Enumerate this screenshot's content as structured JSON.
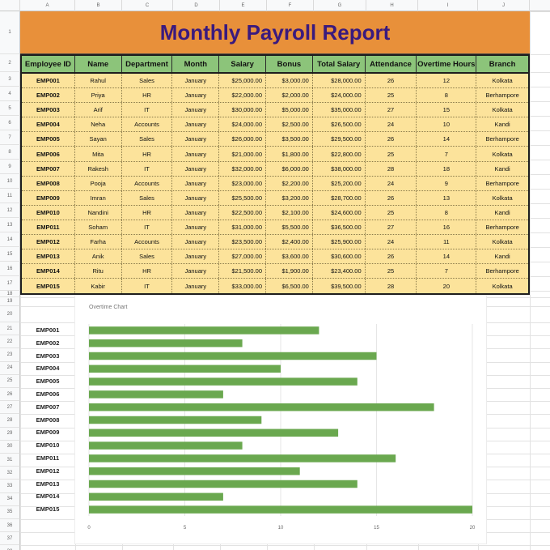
{
  "columns": [
    "A",
    "B",
    "C",
    "D",
    "E",
    "F",
    "G",
    "H",
    "I",
    "J"
  ],
  "rows": [
    "1",
    "2",
    "3",
    "4",
    "5",
    "6",
    "7",
    "8",
    "9",
    "10",
    "11",
    "12",
    "13",
    "14",
    "15",
    "16",
    "17",
    "18",
    "19",
    "20",
    "21",
    "22",
    "23",
    "24",
    "25",
    "26",
    "27",
    "28",
    "29",
    "30",
    "31",
    "32",
    "33",
    "34",
    "35",
    "36",
    "37",
    "38"
  ],
  "report": {
    "title": "Monthly Payroll Report",
    "headers": [
      "Employee ID",
      "Name",
      "Department",
      "Month",
      "Salary",
      "Bonus",
      "Total Salary",
      "Attendance",
      "Overtime Hours",
      "Branch"
    ],
    "records": [
      [
        "EMP001",
        "Rahul",
        "Sales",
        "January",
        "$25,000.00",
        "$3,000.00",
        "$28,000.00",
        "26",
        "12",
        "Kolkata"
      ],
      [
        "EMP002",
        "Priya",
        "HR",
        "January",
        "$22,000.00",
        "$2,000.00",
        "$24,000.00",
        "25",
        "8",
        "Berhampore"
      ],
      [
        "EMP003",
        "Arif",
        "IT",
        "January",
        "$30,000.00",
        "$5,000.00",
        "$35,000.00",
        "27",
        "15",
        "Kolkata"
      ],
      [
        "EMP004",
        "Neha",
        "Accounts",
        "January",
        "$24,000.00",
        "$2,500.00",
        "$26,500.00",
        "24",
        "10",
        "Kandi"
      ],
      [
        "EMP005",
        "Sayan",
        "Sales",
        "January",
        "$26,000.00",
        "$3,500.00",
        "$29,500.00",
        "26",
        "14",
        "Berhampore"
      ],
      [
        "EMP006",
        "Mita",
        "HR",
        "January",
        "$21,000.00",
        "$1,800.00",
        "$22,800.00",
        "25",
        "7",
        "Kolkata"
      ],
      [
        "EMP007",
        "Rakesh",
        "IT",
        "January",
        "$32,000.00",
        "$6,000.00",
        "$38,000.00",
        "28",
        "18",
        "Kandi"
      ],
      [
        "EMP008",
        "Pooja",
        "Accounts",
        "January",
        "$23,000.00",
        "$2,200.00",
        "$25,200.00",
        "24",
        "9",
        "Berhampore"
      ],
      [
        "EMP009",
        "Imran",
        "Sales",
        "January",
        "$25,500.00",
        "$3,200.00",
        "$28,700.00",
        "26",
        "13",
        "Kolkata"
      ],
      [
        "EMP010",
        "Nandini",
        "HR",
        "January",
        "$22,500.00",
        "$2,100.00",
        "$24,600.00",
        "25",
        "8",
        "Kandi"
      ],
      [
        "EMP011",
        "Soham",
        "IT",
        "January",
        "$31,000.00",
        "$5,500.00",
        "$36,500.00",
        "27",
        "16",
        "Berhampore"
      ],
      [
        "EMP012",
        "Farha",
        "Accounts",
        "January",
        "$23,500.00",
        "$2,400.00",
        "$25,900.00",
        "24",
        "11",
        "Kolkata"
      ],
      [
        "EMP013",
        "Anik",
        "Sales",
        "January",
        "$27,000.00",
        "$3,600.00",
        "$30,600.00",
        "26",
        "14",
        "Kandi"
      ],
      [
        "EMP014",
        "Ritu",
        "HR",
        "January",
        "$21,500.00",
        "$1,900.00",
        "$23,400.00",
        "25",
        "7",
        "Berhampore"
      ],
      [
        "EMP015",
        "Kabir",
        "IT",
        "January",
        "$33,000.00",
        "$6,500.00",
        "$39,500.00",
        "28",
        "20",
        "Kolkata"
      ]
    ]
  },
  "chart_data": {
    "type": "bar",
    "orientation": "horizontal",
    "title": "Overtime Chart",
    "categories": [
      "EMP001",
      "EMP002",
      "EMP003",
      "EMP004",
      "EMP005",
      "EMP006",
      "EMP007",
      "EMP008",
      "EMP009",
      "EMP010",
      "EMP011",
      "EMP012",
      "EMP013",
      "EMP014",
      "EMP015"
    ],
    "values": [
      12,
      8,
      15,
      10,
      14,
      7,
      18,
      9,
      13,
      8,
      16,
      11,
      14,
      7,
      20
    ],
    "xlim": [
      0,
      20
    ],
    "xticks": [
      "0",
      "5",
      "10",
      "15",
      "20"
    ],
    "grid": true,
    "bar_color": "#6aa84f"
  }
}
